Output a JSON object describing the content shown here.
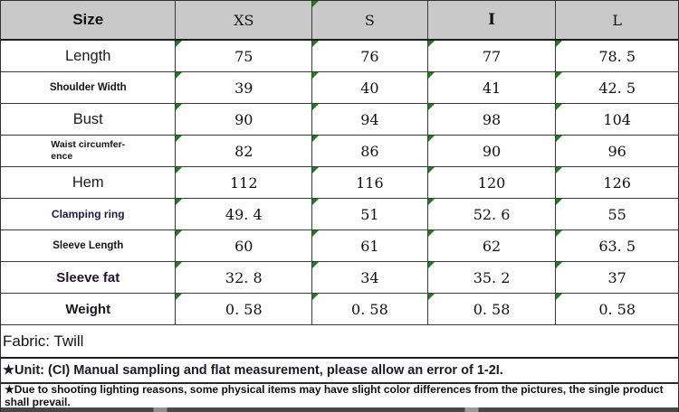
{
  "chart_data": {
    "type": "table",
    "corner_label": "Size",
    "columns": [
      "XS",
      "S",
      "I",
      "L"
    ],
    "rows": [
      {
        "label": "Length",
        "values": [
          "75",
          "76",
          "77",
          "78. 5"
        ]
      },
      {
        "label": "Shoulder Width",
        "values": [
          "39",
          "40",
          "41",
          "42. 5"
        ]
      },
      {
        "label": "Bust",
        "values": [
          "90",
          "94",
          "98",
          "104"
        ]
      },
      {
        "label": "Waist circumfer-\nence",
        "values": [
          "82",
          "86",
          "90",
          "96"
        ]
      },
      {
        "label": "Hem",
        "values": [
          "112",
          "116",
          "120",
          "126"
        ]
      },
      {
        "label": "Clamping ring",
        "values": [
          "49. 4",
          "51",
          "52. 6",
          "55"
        ]
      },
      {
        "label": "Sleeve Length",
        "values": [
          "60",
          "61",
          "62",
          "63. 5"
        ]
      },
      {
        "label": "Sleeve fat",
        "values": [
          "32. 8",
          "34",
          "35. 2",
          "37"
        ]
      },
      {
        "label": "Weight",
        "values": [
          "0. 58",
          "0. 58",
          "0. 58",
          "0. 58"
        ]
      }
    ],
    "fabric_note": "Fabric: Twill",
    "unit_note": "★Unit: (CI) Manual sampling and flat measurement, please allow an error of 1-2I.",
    "lighting_note": "★Due to shooting lighting reasons, some physical items may have slight color differences from the pictures, the single product shall prevail."
  },
  "colors": {
    "header_bg": "#c9c9c9",
    "grid_line": "#3a3a3a",
    "flag_green": "#1e7e1e",
    "label_navy": "#1b1b4a",
    "label_purple": "#241233"
  }
}
